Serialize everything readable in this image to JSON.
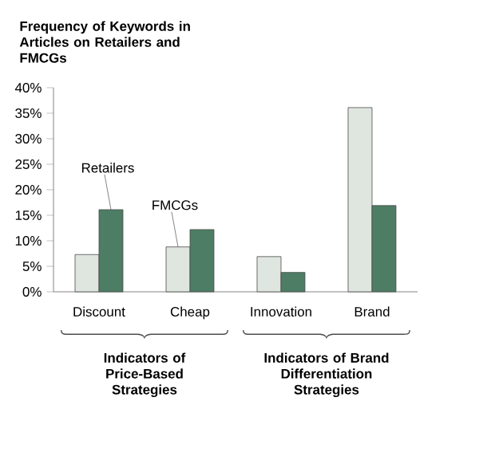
{
  "chart_data": {
    "type": "bar",
    "title": "Frequency of Keywords in Articles on Retailers and FMCGs",
    "categories": [
      "Discount",
      "Cheap",
      "Innovation",
      "Brand"
    ],
    "series": [
      {
        "name": "FMCGs",
        "color": "#dfe5df",
        "values": [
          7.3,
          8.8,
          6.9,
          36.1
        ]
      },
      {
        "name": "Retailers",
        "color": "#4d7d65",
        "values": [
          16.1,
          12.2,
          3.8,
          16.9
        ]
      }
    ],
    "ylim": [
      0,
      40
    ],
    "yticks": [
      {
        "value": 0,
        "label": "0%"
      },
      {
        "value": 5,
        "label": "5%"
      },
      {
        "value": 10,
        "label": "10%"
      },
      {
        "value": 15,
        "label": "15%"
      },
      {
        "value": 20,
        "label": "20%"
      },
      {
        "value": 25,
        "label": "25%"
      },
      {
        "value": 30,
        "label": "30%"
      },
      {
        "value": 35,
        "label": "35%"
      },
      {
        "value": 40,
        "label": "40%"
      }
    ],
    "annotations": [
      "Indicators of Price-Based Strategies",
      "Indicators of Brand Differentiation Strategies"
    ],
    "grid": false,
    "legend": false
  }
}
